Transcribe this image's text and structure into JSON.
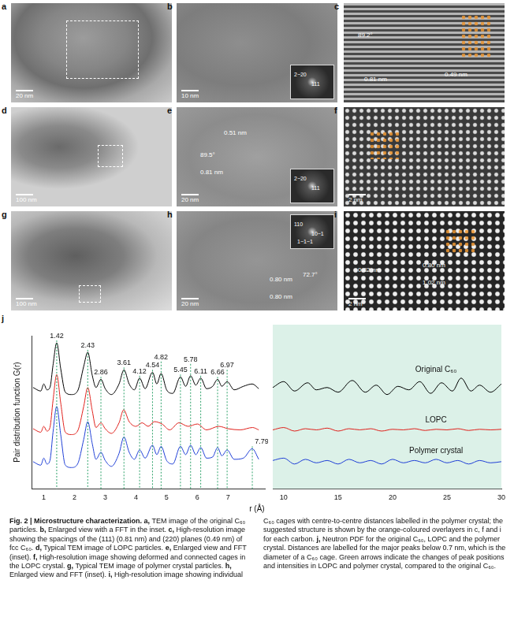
{
  "panels": [
    {
      "letter": "a",
      "scale_bar": "20 nm"
    },
    {
      "letter": "b",
      "scale_bar": "10 nm",
      "fft": [
        "2−20",
        "111"
      ]
    },
    {
      "letter": "c",
      "labels": [
        "89.2°",
        "0.81 nm",
        "0.49 nm"
      ]
    },
    {
      "letter": "d",
      "scale_bar": "100 nm"
    },
    {
      "letter": "e",
      "scale_bar": "20 nm",
      "fft": [
        "2−20",
        "111"
      ],
      "labels": [
        "0.51 nm",
        "89.5°",
        "0.81 nm"
      ]
    },
    {
      "letter": "f",
      "scale_bar": "2 nm"
    },
    {
      "letter": "g",
      "scale_bar": "100 nm"
    },
    {
      "letter": "h",
      "scale_bar": "20 nm",
      "fft": [
        "110",
        "10−1",
        "1−1−1"
      ],
      "labels": [
        "0.80 nm",
        "72.7°",
        "0.80 nm"
      ]
    },
    {
      "letter": "i",
      "scale_bar": "2 nm",
      "labels": [
        "0.82 nm",
        "0.80 nm",
        "1.02 nm"
      ]
    }
  ],
  "chart_data": [
    {
      "type": "line",
      "letter": "j",
      "xlabel": "r (Å)",
      "ylabel": "Pair distribution function G(r)",
      "xlim": [
        0.6,
        8.2
      ],
      "xticks": [
        1,
        2,
        3,
        4,
        5,
        6,
        7
      ],
      "ylim": [
        0,
        13
      ],
      "yticks": [],
      "grid": false,
      "tick_labels": "x",
      "series": [
        {
          "name": "Original C₆₀",
          "color": "#000000",
          "x": [
            0.65,
            0.9,
            1.0,
            1.1,
            1.2,
            1.3,
            1.42,
            1.55,
            1.7,
            1.9,
            2.1,
            2.3,
            2.43,
            2.58,
            2.7,
            2.86,
            3.0,
            3.2,
            3.45,
            3.61,
            3.78,
            3.95,
            4.12,
            4.3,
            4.54,
            4.68,
            4.82,
            5.0,
            5.2,
            5.45,
            5.62,
            5.78,
            5.95,
            6.11,
            6.3,
            6.5,
            6.66,
            6.8,
            6.97,
            7.2,
            7.5,
            7.79,
            8.0
          ],
          "values": [
            8.6,
            8.3,
            8.9,
            8.4,
            8.6,
            10.5,
            12.4,
            10.2,
            8.2,
            8.0,
            8.3,
            10.4,
            11.6,
            9.6,
            8.6,
            9.3,
            8.5,
            8.0,
            8.9,
            10.1,
            8.9,
            8.4,
            9.4,
            8.5,
            9.9,
            8.9,
            9.8,
            8.4,
            8.1,
            9.5,
            8.7,
            9.6,
            8.8,
            9.4,
            8.5,
            8.7,
            9.3,
            8.7,
            9.1,
            8.4,
            8.7,
            8.9,
            8.5
          ]
        },
        {
          "name": "LOPC",
          "color": "#e0201b",
          "x": [
            0.65,
            0.9,
            1.0,
            1.1,
            1.2,
            1.3,
            1.42,
            1.55,
            1.7,
            1.9,
            2.1,
            2.3,
            2.43,
            2.58,
            2.7,
            2.86,
            3.0,
            3.2,
            3.45,
            3.6,
            3.78,
            4.0,
            4.2,
            4.4,
            4.6,
            4.85,
            5.1,
            5.4,
            5.7,
            6.0,
            6.3,
            6.7,
            7.0,
            7.4,
            7.8,
            8.0
          ],
          "values": [
            5.1,
            4.8,
            5.3,
            4.9,
            5.2,
            7.5,
            9.7,
            7.3,
            4.8,
            4.6,
            4.9,
            7.0,
            8.6,
            6.6,
            5.2,
            5.6,
            5.1,
            4.7,
            5.6,
            6.7,
            5.7,
            5.3,
            5.6,
            5.3,
            5.7,
            5.5,
            5.0,
            5.6,
            5.3,
            5.5,
            5.0,
            5.3,
            5.1,
            5.0,
            5.2,
            5.0
          ]
        },
        {
          "name": "Polymer crystal",
          "color": "#1f3fd6",
          "x": [
            0.65,
            0.9,
            1.0,
            1.1,
            1.2,
            1.3,
            1.42,
            1.55,
            1.7,
            1.9,
            2.1,
            2.3,
            2.43,
            2.58,
            2.7,
            2.86,
            3.0,
            3.2,
            3.45,
            3.61,
            3.78,
            3.95,
            4.12,
            4.3,
            4.54,
            4.68,
            4.82,
            5.0,
            5.2,
            5.45,
            5.62,
            5.78,
            5.95,
            6.11,
            6.3,
            6.5,
            6.66,
            6.8,
            6.97,
            7.2,
            7.5,
            7.79,
            8.0
          ],
          "values": [
            2.3,
            2.0,
            2.6,
            2.1,
            2.4,
            4.8,
            7.0,
            4.6,
            2.0,
            1.8,
            2.1,
            4.2,
            5.7,
            3.8,
            2.5,
            3.1,
            2.4,
            1.9,
            3.0,
            4.4,
            3.1,
            2.5,
            3.3,
            2.6,
            3.7,
            2.9,
            3.6,
            2.4,
            2.1,
            3.6,
            2.9,
            3.7,
            2.9,
            3.5,
            2.6,
            2.7,
            3.5,
            2.8,
            3.3,
            2.5,
            2.6,
            3.4,
            2.5
          ]
        }
      ],
      "peak_labels": [
        {
          "value": 1.42,
          "series": 0
        },
        {
          "value": 2.43,
          "series": 0
        },
        {
          "value": 2.86,
          "series": 0
        },
        {
          "value": 3.61,
          "series": 0
        },
        {
          "value": 4.12,
          "series": 0
        },
        {
          "value": 4.54,
          "series": 0
        },
        {
          "value": 4.82,
          "series": 0
        },
        {
          "value": 5.45,
          "series": 0
        },
        {
          "value": 5.78,
          "series": 0
        },
        {
          "value": 6.11,
          "series": 0
        },
        {
          "value": 6.66,
          "series": 0
        },
        {
          "value": 6.97,
          "series": 0
        },
        {
          "value": 7.79,
          "series": 2
        }
      ]
    },
    {
      "type": "line",
      "xlim": [
        9,
        30
      ],
      "xticks": [
        10,
        15,
        20,
        25,
        30
      ],
      "ylim": [
        0,
        13
      ],
      "yticks": [],
      "grid": false,
      "tick_labels": "x",
      "series": [
        {
          "name": "Original C₆₀",
          "color": "#000000",
          "x": [
            9,
            10,
            11,
            12.2,
            13,
            14,
            15,
            16.3,
            17.5,
            18.5,
            19.5,
            20.5,
            21.5,
            22.5,
            23.5,
            24.5,
            25.5,
            26.3,
            27.2,
            28,
            29,
            30
          ],
          "values": [
            8.6,
            9.1,
            8.3,
            9.0,
            8.4,
            8.6,
            8.2,
            9.2,
            8.2,
            8.8,
            8.0,
            8.7,
            8.4,
            9.1,
            8.1,
            9.0,
            8.3,
            9.4,
            8.3,
            8.8,
            8.2,
            8.9
          ]
        },
        {
          "name": "LOPC",
          "color": "#e0201b",
          "x": [
            9,
            10,
            11,
            12,
            13,
            14,
            15,
            16,
            17,
            18,
            19,
            20,
            21,
            22,
            23,
            24,
            25,
            26,
            27,
            28,
            29,
            30
          ],
          "values": [
            5.0,
            5.2,
            4.9,
            5.1,
            5.0,
            5.15,
            4.9,
            5.1,
            5.0,
            5.1,
            4.9,
            5.05,
            5.0,
            5.1,
            4.95,
            5.05,
            5.0,
            5.1,
            4.95,
            5.05,
            5.0,
            5.05
          ]
        },
        {
          "name": "Polymer crystal",
          "color": "#1f3fd6",
          "x": [
            9,
            10,
            11,
            12,
            13,
            14,
            15,
            16,
            17,
            18,
            19,
            20,
            21,
            22,
            23,
            24,
            25,
            26,
            27,
            28,
            29,
            30
          ],
          "values": [
            2.4,
            2.6,
            2.1,
            2.5,
            2.2,
            2.4,
            2.1,
            2.5,
            2.2,
            2.4,
            2.1,
            2.5,
            2.2,
            2.4,
            2.2,
            2.5,
            2.2,
            2.4,
            2.1,
            2.4,
            2.2,
            2.3
          ]
        }
      ]
    }
  ],
  "caption": {
    "title": "Fig. 2 | Microstructure characterization.",
    "items": [
      {
        "label": "a,",
        "text": "TEM image of the original C₆₀ particles."
      },
      {
        "label": "b,",
        "text": "Enlarged view with a FFT in the inset."
      },
      {
        "label": "c,",
        "text": "High-resolution image showing the spacings of the (111) (0.81 nm) and (220) planes (0.49 nm) of fcc C₆₀."
      },
      {
        "label": "d,",
        "text": "Typical TEM image of LOPC particles."
      },
      {
        "label": "e,",
        "text": "Enlarged view and FFT (inset)."
      },
      {
        "label": "f,",
        "text": "High-resolution image showing deformed and connected cages in the LOPC crystal."
      },
      {
        "label": "g,",
        "text": "Typical TEM image of polymer crystal particles."
      },
      {
        "label": "h,",
        "text": "Enlarged view and FFT (inset)."
      },
      {
        "label": "i,",
        "text": "High-resolution image showing individual C₆₀ cages with centre-to-centre distances labelled in the polymer crystal; the suggested structure is shown by the orange-coloured overlayers in c, f and i for each carbon."
      },
      {
        "label": "j,",
        "text": "Neutron PDF for the original C₆₀, LOPC and the polymer crystal. Distances are labelled for the major peaks below 0.7 nm, which is the diameter of a C₆₀ cage. Green arrows indicate the changes of peak positions and intensities in LOPC and polymer crystal, compared to the original C₆₀."
      }
    ]
  }
}
